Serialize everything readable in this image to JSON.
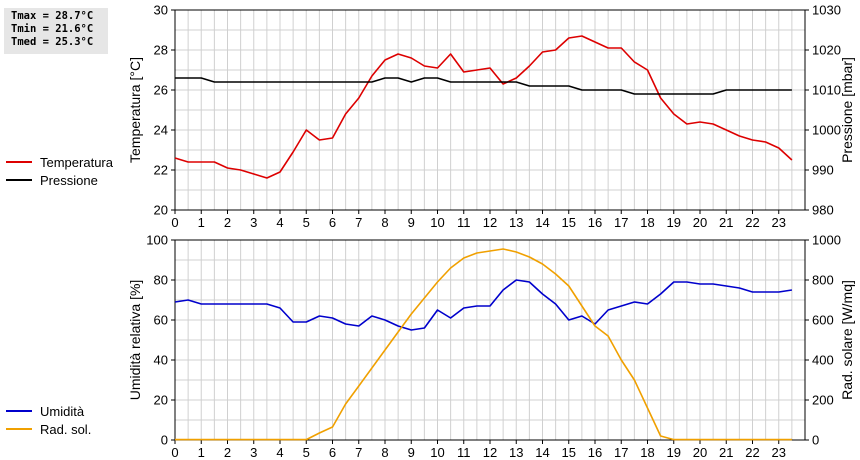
{
  "stats": {
    "tmax": "Tmax = 28.7°C",
    "tmin": "Tmin = 21.6°C",
    "tmed": "Tmed = 25.3°C"
  },
  "legend_top": [
    {
      "label": "Temperatura",
      "color": "#dd0000"
    },
    {
      "label": "Pressione",
      "color": "#000000"
    }
  ],
  "legend_bottom": [
    {
      "label": "Umidità",
      "color": "#0000cc"
    },
    {
      "label": "Rad. sol.",
      "color": "#f0a000"
    }
  ],
  "chart_data": [
    {
      "type": "line",
      "xlim": [
        0,
        24
      ],
      "x_ticks": [
        0,
        1,
        2,
        3,
        4,
        5,
        6,
        7,
        8,
        9,
        10,
        11,
        12,
        13,
        14,
        15,
        16,
        17,
        18,
        19,
        20,
        21,
        22,
        23
      ],
      "ylabel": "Temperatura [°C]",
      "ylim": [
        20,
        30
      ],
      "y_ticks": [
        20,
        22,
        24,
        26,
        28,
        30
      ],
      "y2label": "Pressione [mbar]",
      "y2lim": [
        980,
        1030
      ],
      "y2_ticks": [
        980,
        990,
        1000,
        1010,
        1020,
        1030
      ],
      "grid": true,
      "series": [
        {
          "name": "Temperatura",
          "axis": "left",
          "color": "#dd0000",
          "x": [
            0,
            0.5,
            1,
            1.5,
            2,
            2.5,
            3,
            3.5,
            4,
            4.5,
            5,
            5.5,
            6,
            6.5,
            7,
            7.5,
            8,
            8.5,
            9,
            9.5,
            10,
            10.5,
            11,
            11.5,
            12,
            12.5,
            13,
            13.5,
            14,
            14.5,
            15,
            15.5,
            16,
            16.5,
            17,
            17.5,
            18,
            18.5,
            19,
            19.5,
            20,
            20.5,
            21,
            21.5,
            22,
            22.5,
            23,
            23.5
          ],
          "values": [
            22.6,
            22.4,
            22.4,
            22.4,
            22.1,
            22.0,
            21.8,
            21.6,
            21.9,
            22.9,
            24.0,
            23.5,
            23.6,
            24.8,
            25.6,
            26.7,
            27.5,
            27.8,
            27.6,
            27.2,
            27.1,
            27.8,
            26.9,
            27.0,
            27.1,
            26.3,
            26.6,
            27.2,
            27.9,
            28.0,
            28.6,
            28.7,
            28.4,
            28.1,
            28.1,
            27.4,
            27.0,
            25.6,
            24.8,
            24.3,
            24.4,
            24.3,
            24.0,
            23.7,
            23.5,
            23.4,
            23.1,
            22.5
          ]
        },
        {
          "name": "Pressione",
          "axis": "right",
          "color": "#000000",
          "x": [
            0,
            1,
            1.5,
            5,
            7.5,
            8,
            8.5,
            9,
            9.5,
            10,
            10.5,
            11,
            12,
            13,
            13.5,
            15,
            15.5,
            17,
            17.5,
            18,
            18.5,
            20.5,
            21,
            21.5,
            23.5
          ],
          "values": [
            1013,
            1013,
            1012,
            1012,
            1012,
            1013,
            1013,
            1012,
            1013,
            1013,
            1012,
            1012,
            1012,
            1012,
            1011,
            1011,
            1010,
            1010,
            1009,
            1009,
            1009,
            1009,
            1010,
            1010,
            1010
          ]
        }
      ]
    },
    {
      "type": "line",
      "xlim": [
        0,
        24
      ],
      "x_ticks": [
        0,
        1,
        2,
        3,
        4,
        5,
        6,
        7,
        8,
        9,
        10,
        11,
        12,
        13,
        14,
        15,
        16,
        17,
        18,
        19,
        20,
        21,
        22,
        23
      ],
      "ylabel": "Umidità relativa [%]",
      "ylim": [
        0,
        100
      ],
      "y_ticks": [
        0,
        20,
        40,
        60,
        80,
        100
      ],
      "y2label": "Rad. solare [W/mq]",
      "y2lim": [
        0,
        1000
      ],
      "y2_ticks": [
        0,
        200,
        400,
        600,
        800,
        1000
      ],
      "grid": true,
      "series": [
        {
          "name": "Umidità",
          "axis": "left",
          "color": "#0000cc",
          "x": [
            0,
            0.5,
            1,
            1.5,
            2,
            2.5,
            3,
            3.5,
            4,
            4.5,
            5,
            5.5,
            6,
            6.5,
            7,
            7.5,
            8,
            8.5,
            9,
            9.5,
            10,
            10.5,
            11,
            11.5,
            12,
            12.5,
            13,
            13.5,
            14,
            14.5,
            15,
            15.5,
            16,
            16.5,
            17,
            17.5,
            18,
            18.5,
            19,
            19.5,
            20,
            20.5,
            21,
            21.5,
            22,
            22.5,
            23,
            23.5
          ],
          "values": [
            69,
            70,
            68,
            68,
            68,
            68,
            68,
            68,
            66,
            59,
            59,
            62,
            61,
            58,
            57,
            62,
            60,
            57,
            55,
            56,
            65,
            61,
            66,
            67,
            67,
            75,
            80,
            79,
            73,
            68,
            60,
            62,
            58,
            65,
            67,
            69,
            68,
            73,
            79,
            79,
            78,
            78,
            77,
            76,
            74,
            74,
            74,
            75
          ]
        },
        {
          "name": "Rad. sol.",
          "axis": "right",
          "color": "#f0a000",
          "x": [
            0,
            1,
            2,
            3,
            4,
            5,
            5.5,
            6,
            6.5,
            7,
            7.5,
            8,
            8.5,
            9,
            9.5,
            10,
            10.5,
            11,
            11.5,
            12,
            12.5,
            13,
            13.5,
            14,
            14.5,
            15,
            15.5,
            16,
            16.5,
            17,
            17.5,
            18,
            18.5,
            19,
            20,
            21,
            22,
            23,
            23.5
          ],
          "values": [
            2,
            2,
            2,
            2,
            2,
            2,
            35,
            65,
            180,
            270,
            360,
            450,
            540,
            630,
            710,
            790,
            860,
            910,
            935,
            945,
            955,
            940,
            915,
            880,
            830,
            770,
            670,
            570,
            520,
            400,
            300,
            160,
            20,
            2,
            2,
            2,
            2,
            2,
            2
          ]
        }
      ]
    }
  ]
}
